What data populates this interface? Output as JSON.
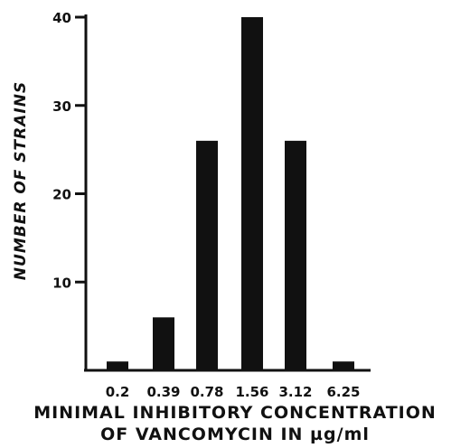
{
  "chart_data": {
    "type": "bar",
    "categories": [
      "0.2",
      "0.39",
      "0.78",
      "1.56",
      "3.12",
      "6.25"
    ],
    "values": [
      1,
      6,
      26,
      40,
      26,
      1
    ],
    "ylim": [
      0,
      40
    ],
    "yticks": [
      10,
      20,
      30,
      40
    ],
    "ylabel": "NUMBER OF STRAINS",
    "xlabel_line1": "MINIMAL INHIBITORY CONCENTRATION",
    "xlabel_line2": "OF VANCOMYCIN IN µg/ml",
    "bar_color": "#111111",
    "grid": false
  }
}
